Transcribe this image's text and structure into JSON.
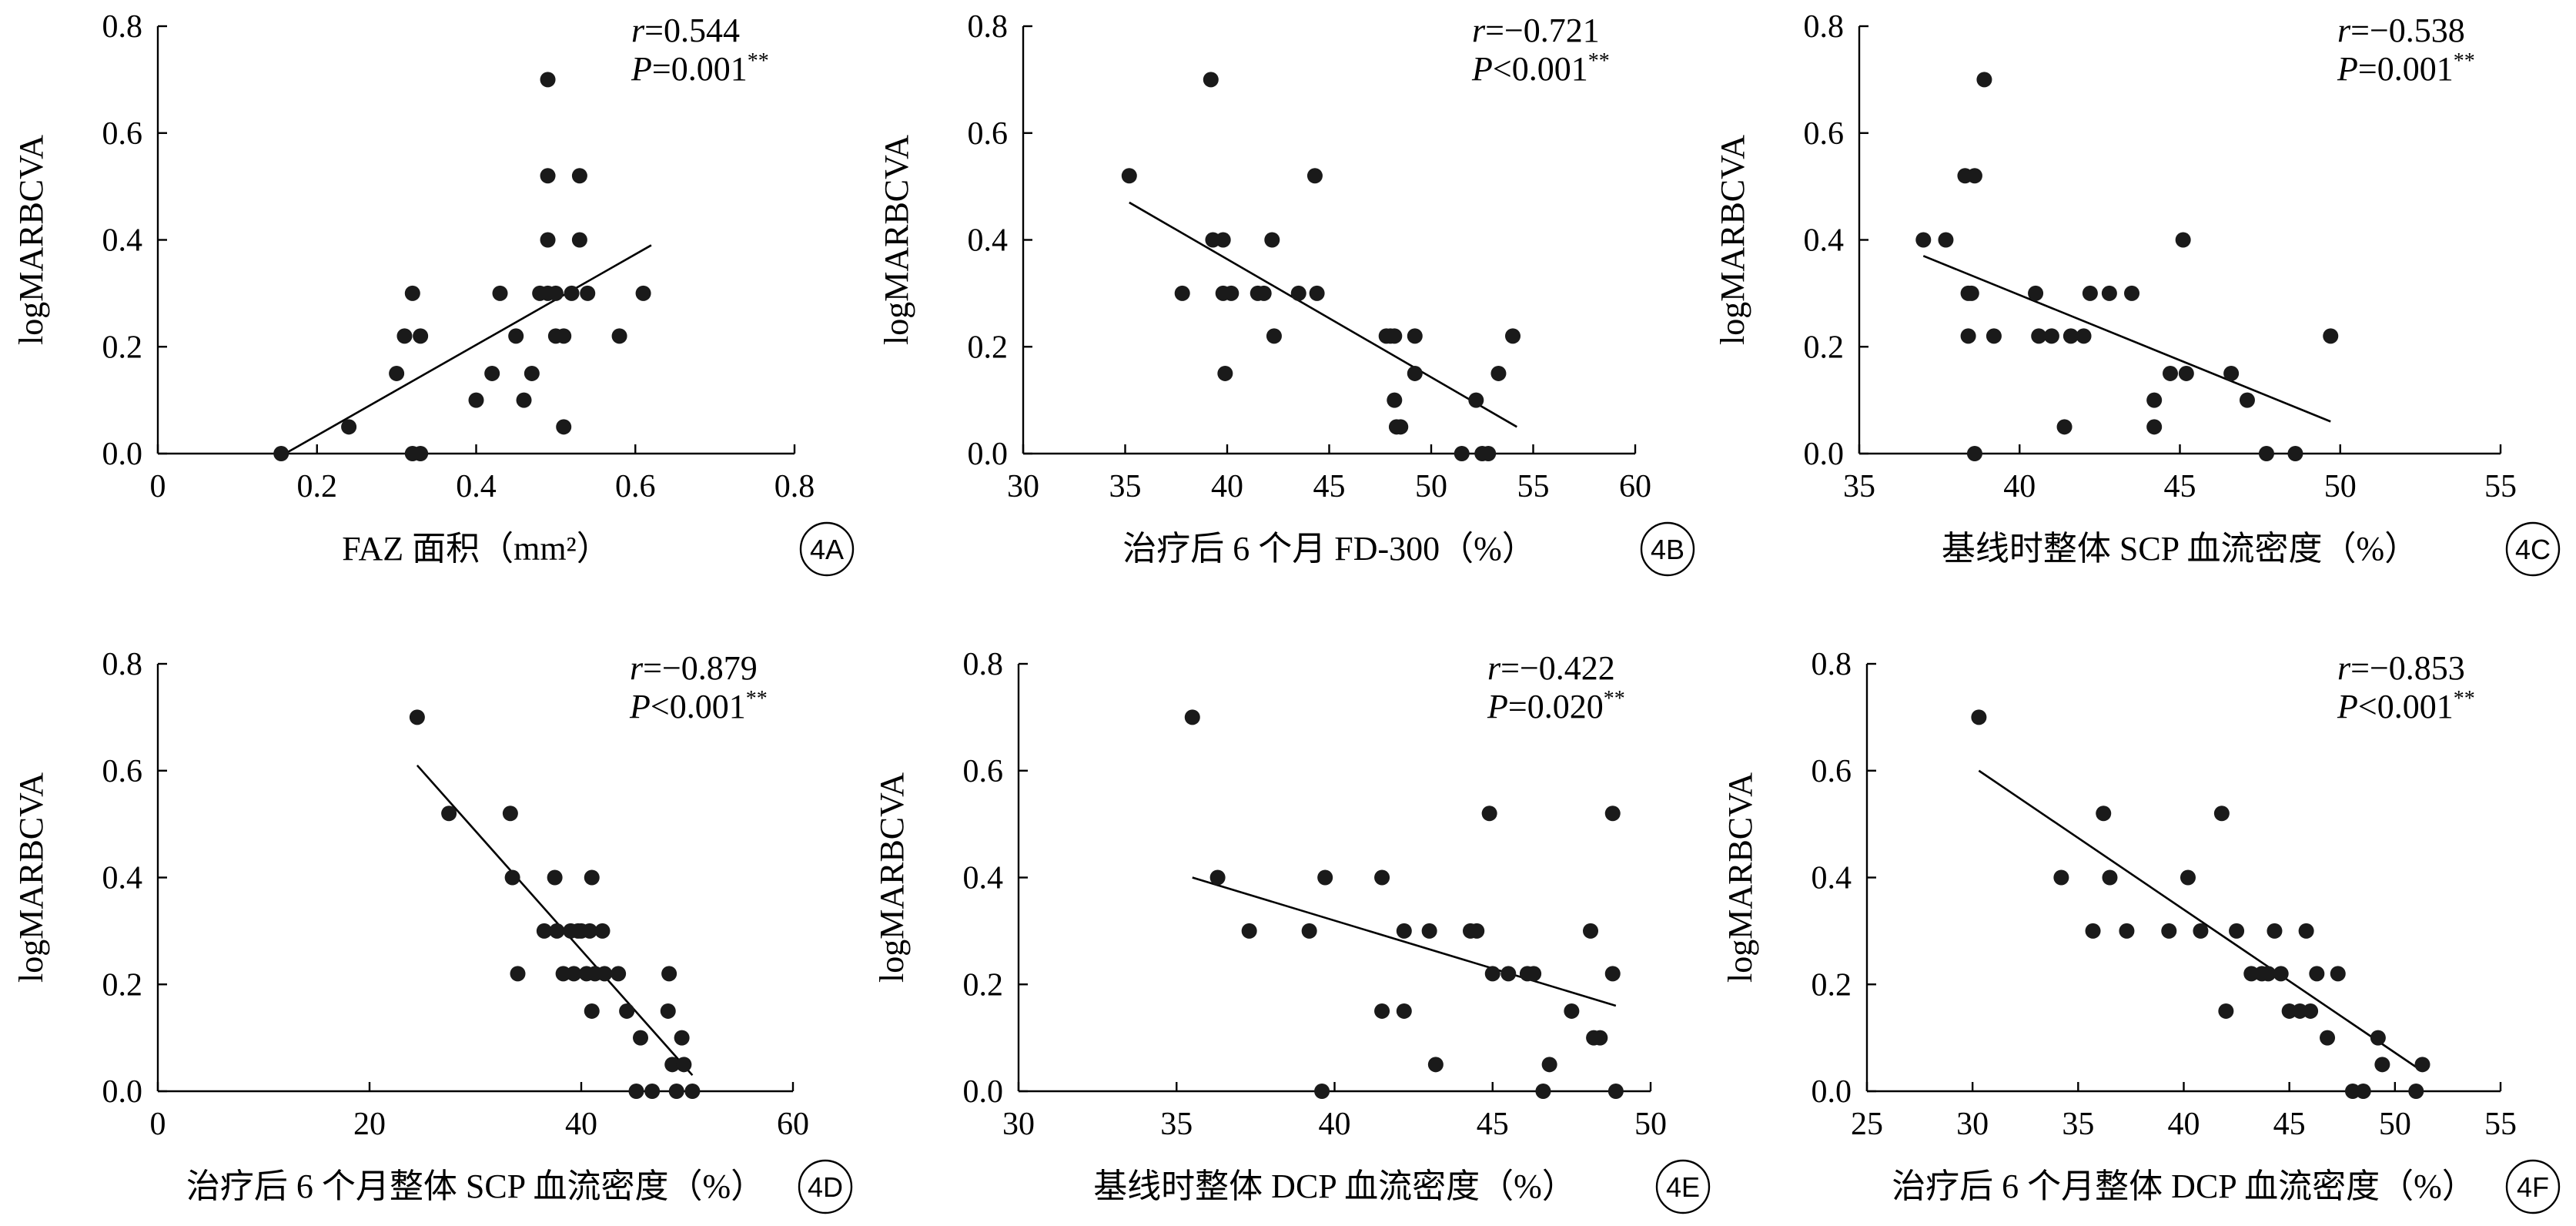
{
  "chart_data": [
    {
      "panel": "4A",
      "type": "scatter",
      "xlabel": "FAZ 面积（mm²）",
      "ylabel": "logMARBCVA",
      "xlim": [
        0,
        0.8
      ],
      "ylim": [
        0,
        0.8
      ],
      "xticks": [
        "0",
        "0.2",
        "0.4",
        "0.6",
        "0.8"
      ],
      "yticks": [
        "0.0",
        "0.2",
        "0.4",
        "0.6",
        "0.8"
      ],
      "r_label": "r",
      "r_value": "=0.544",
      "p_label": "P",
      "p_value": "=0.001",
      "sig": "**",
      "fit": [
        [
          0.16,
          0.0
        ],
        [
          0.62,
          0.39
        ]
      ],
      "points": [
        [
          0.155,
          0.0
        ],
        [
          0.24,
          0.05
        ],
        [
          0.3,
          0.15
        ],
        [
          0.31,
          0.22
        ],
        [
          0.32,
          0.3
        ],
        [
          0.32,
          0.0
        ],
        [
          0.33,
          0.0
        ],
        [
          0.33,
          0.22
        ],
        [
          0.4,
          0.1
        ],
        [
          0.42,
          0.15
        ],
        [
          0.43,
          0.3
        ],
        [
          0.45,
          0.22
        ],
        [
          0.46,
          0.1
        ],
        [
          0.47,
          0.15
        ],
        [
          0.48,
          0.3
        ],
        [
          0.49,
          0.7
        ],
        [
          0.49,
          0.52
        ],
        [
          0.49,
          0.4
        ],
        [
          0.49,
          0.3
        ],
        [
          0.5,
          0.22
        ],
        [
          0.5,
          0.3
        ],
        [
          0.51,
          0.22
        ],
        [
          0.51,
          0.05
        ],
        [
          0.52,
          0.3
        ],
        [
          0.53,
          0.52
        ],
        [
          0.53,
          0.4
        ],
        [
          0.54,
          0.3
        ],
        [
          0.58,
          0.22
        ],
        [
          0.61,
          0.3
        ]
      ]
    },
    {
      "panel": "4B",
      "type": "scatter",
      "xlabel": "治疗后 6 个月 FD-300（%）",
      "ylabel": "logMARBCVA",
      "xlim": [
        30,
        60
      ],
      "ylim": [
        0,
        0.8
      ],
      "xticks": [
        "30",
        "35",
        "40",
        "45",
        "50",
        "55",
        "60"
      ],
      "yticks": [
        "0.0",
        "0.2",
        "0.4",
        "0.6",
        "0.8"
      ],
      "r_label": "r",
      "r_value": "=−0.721",
      "p_label": "P",
      "p_value": "<0.001",
      "sig": "**",
      "fit": [
        [
          35.2,
          0.47
        ],
        [
          54.2,
          0.05
        ]
      ],
      "points": [
        [
          35.2,
          0.52
        ],
        [
          37.8,
          0.3
        ],
        [
          39.2,
          0.7
        ],
        [
          39.3,
          0.4
        ],
        [
          39.8,
          0.4
        ],
        [
          39.8,
          0.3
        ],
        [
          39.9,
          0.15
        ],
        [
          40.2,
          0.3
        ],
        [
          41.5,
          0.3
        ],
        [
          41.8,
          0.3
        ],
        [
          42.2,
          0.4
        ],
        [
          42.3,
          0.22
        ],
        [
          43.5,
          0.3
        ],
        [
          44.3,
          0.52
        ],
        [
          44.4,
          0.3
        ],
        [
          47.8,
          0.22
        ],
        [
          48.0,
          0.22
        ],
        [
          48.2,
          0.22
        ],
        [
          48.2,
          0.1
        ],
        [
          48.3,
          0.05
        ],
        [
          48.5,
          0.05
        ],
        [
          49.2,
          0.22
        ],
        [
          49.2,
          0.15
        ],
        [
          51.5,
          0.0
        ],
        [
          52.2,
          0.1
        ],
        [
          52.5,
          0.0
        ],
        [
          52.8,
          0.0
        ],
        [
          53.3,
          0.15
        ],
        [
          54.0,
          0.22
        ]
      ]
    },
    {
      "panel": "4C",
      "type": "scatter",
      "xlabel": "基线时整体 SCP 血流密度（%）",
      "ylabel": "logMARBCVA",
      "xlim": [
        35,
        55
      ],
      "ylim": [
        0,
        0.8
      ],
      "xticks": [
        "35",
        "40",
        "45",
        "50",
        "55"
      ],
      "yticks": [
        "0.0",
        "0.2",
        "0.4",
        "0.6",
        "0.8"
      ],
      "r_label": "r",
      "r_value": "=−0.538",
      "p_label": "P",
      "p_value": "=0.001",
      "sig": "**",
      "fit": [
        [
          37.0,
          0.37
        ],
        [
          49.7,
          0.06
        ]
      ],
      "points": [
        [
          37.0,
          0.4
        ],
        [
          37.7,
          0.4
        ],
        [
          38.3,
          0.52
        ],
        [
          38.4,
          0.3
        ],
        [
          38.4,
          0.22
        ],
        [
          38.5,
          0.3
        ],
        [
          38.6,
          0.52
        ],
        [
          38.6,
          0.0
        ],
        [
          38.9,
          0.7
        ],
        [
          39.2,
          0.22
        ],
        [
          40.5,
          0.3
        ],
        [
          40.6,
          0.22
        ],
        [
          41.0,
          0.22
        ],
        [
          41.4,
          0.05
        ],
        [
          41.6,
          0.22
        ],
        [
          42.0,
          0.22
        ],
        [
          42.2,
          0.3
        ],
        [
          42.8,
          0.3
        ],
        [
          43.5,
          0.3
        ],
        [
          44.2,
          0.1
        ],
        [
          44.2,
          0.05
        ],
        [
          44.7,
          0.15
        ],
        [
          45.1,
          0.4
        ],
        [
          45.2,
          0.15
        ],
        [
          46.6,
          0.15
        ],
        [
          47.1,
          0.1
        ],
        [
          47.7,
          0.0
        ],
        [
          48.6,
          0.0
        ],
        [
          49.7,
          0.22
        ]
      ]
    },
    {
      "panel": "4D",
      "type": "scatter",
      "xlabel": "治疗后 6 个月整体 SCP 血流密度（%）",
      "ylabel": "logMARBCVA",
      "xlim": [
        0,
        60
      ],
      "ylim": [
        0,
        0.8
      ],
      "xticks": [
        "0",
        "20",
        "40",
        "60"
      ],
      "yticks": [
        "0.0",
        "0.2",
        "0.4",
        "0.6",
        "0.8"
      ],
      "r_label": "r",
      "r_value": "=−0.879",
      "p_label": "P",
      "p_value": "<0.001",
      "sig": "**",
      "fit": [
        [
          24.5,
          0.61
        ],
        [
          50.5,
          0.03
        ]
      ],
      "points": [
        [
          24.5,
          0.7
        ],
        [
          27.5,
          0.52
        ],
        [
          33.3,
          0.52
        ],
        [
          33.5,
          0.4
        ],
        [
          34.0,
          0.22
        ],
        [
          36.5,
          0.3
        ],
        [
          37.5,
          0.4
        ],
        [
          37.7,
          0.3
        ],
        [
          38.3,
          0.22
        ],
        [
          39.0,
          0.3
        ],
        [
          39.3,
          0.22
        ],
        [
          39.7,
          0.3
        ],
        [
          40.0,
          0.3
        ],
        [
          40.5,
          0.22
        ],
        [
          40.8,
          0.3
        ],
        [
          41.0,
          0.4
        ],
        [
          41.0,
          0.15
        ],
        [
          41.3,
          0.22
        ],
        [
          42.0,
          0.3
        ],
        [
          42.2,
          0.22
        ],
        [
          43.5,
          0.22
        ],
        [
          44.3,
          0.15
        ],
        [
          45.2,
          0.0
        ],
        [
          45.6,
          0.1
        ],
        [
          46.7,
          0.0
        ],
        [
          48.3,
          0.22
        ],
        [
          48.2,
          0.15
        ],
        [
          48.6,
          0.05
        ],
        [
          49.0,
          0.0
        ],
        [
          49.5,
          0.1
        ],
        [
          49.7,
          0.05
        ],
        [
          50.5,
          0.0
        ]
      ]
    },
    {
      "panel": "4E",
      "type": "scatter",
      "xlabel": "基线时整体 DCP 血流密度（%）",
      "ylabel": "logMARBCVA",
      "xlim": [
        30,
        50
      ],
      "ylim": [
        0,
        0.8
      ],
      "xticks": [
        "30",
        "35",
        "40",
        "45",
        "50"
      ],
      "yticks": [
        "0.0",
        "0.2",
        "0.4",
        "0.6",
        "0.8"
      ],
      "r_label": "r",
      "r_value": "=−0.422",
      "p_label": "P",
      "p_value": "=0.020",
      "sig": "**",
      "fit": [
        [
          35.5,
          0.4
        ],
        [
          48.9,
          0.16
        ]
      ],
      "points": [
        [
          35.5,
          0.7
        ],
        [
          36.3,
          0.4
        ],
        [
          37.3,
          0.3
        ],
        [
          39.2,
          0.3
        ],
        [
          39.6,
          0.0
        ],
        [
          39.7,
          0.4
        ],
        [
          41.5,
          0.4
        ],
        [
          41.5,
          0.15
        ],
        [
          42.2,
          0.3
        ],
        [
          42.2,
          0.15
        ],
        [
          43.0,
          0.3
        ],
        [
          43.2,
          0.05
        ],
        [
          44.3,
          0.3
        ],
        [
          44.5,
          0.3
        ],
        [
          44.9,
          0.52
        ],
        [
          45.0,
          0.22
        ],
        [
          45.5,
          0.22
        ],
        [
          46.1,
          0.22
        ],
        [
          46.3,
          0.22
        ],
        [
          46.6,
          0.0
        ],
        [
          46.8,
          0.05
        ],
        [
          47.5,
          0.15
        ],
        [
          48.1,
          0.3
        ],
        [
          48.2,
          0.1
        ],
        [
          48.4,
          0.1
        ],
        [
          48.8,
          0.52
        ],
        [
          48.8,
          0.22
        ],
        [
          48.9,
          0.0
        ]
      ]
    },
    {
      "panel": "4F",
      "type": "scatter",
      "xlabel": "治疗后 6 个月整体 DCP 血流密度（%）",
      "ylabel": "logMARBCVA",
      "xlim": [
        25,
        55
      ],
      "ylim": [
        0,
        0.8
      ],
      "xticks": [
        "25",
        "30",
        "35",
        "40",
        "45",
        "50",
        "55"
      ],
      "yticks": [
        "0.0",
        "0.2",
        "0.4",
        "0.6",
        "0.8"
      ],
      "r_label": "r",
      "r_value": "=−0.853",
      "p_label": "P",
      "p_value": "<0.001",
      "sig": "**",
      "fit": [
        [
          30.3,
          0.6
        ],
        [
          51.2,
          0.04
        ]
      ],
      "points": [
        [
          30.3,
          0.7
        ],
        [
          34.2,
          0.4
        ],
        [
          35.7,
          0.3
        ],
        [
          36.2,
          0.52
        ],
        [
          36.5,
          0.4
        ],
        [
          37.3,
          0.3
        ],
        [
          39.3,
          0.3
        ],
        [
          40.2,
          0.4
        ],
        [
          40.8,
          0.3
        ],
        [
          41.8,
          0.52
        ],
        [
          42.0,
          0.15
        ],
        [
          42.5,
          0.3
        ],
        [
          43.2,
          0.22
        ],
        [
          43.7,
          0.22
        ],
        [
          44.0,
          0.22
        ],
        [
          44.3,
          0.3
        ],
        [
          44.6,
          0.22
        ],
        [
          45.0,
          0.15
        ],
        [
          45.5,
          0.15
        ],
        [
          45.8,
          0.3
        ],
        [
          46.0,
          0.15
        ],
        [
          46.3,
          0.22
        ],
        [
          46.8,
          0.1
        ],
        [
          47.3,
          0.22
        ],
        [
          48.0,
          0.0
        ],
        [
          48.5,
          0.0
        ],
        [
          49.2,
          0.1
        ],
        [
          49.4,
          0.05
        ],
        [
          51.0,
          0.0
        ],
        [
          51.3,
          0.05
        ]
      ]
    }
  ]
}
